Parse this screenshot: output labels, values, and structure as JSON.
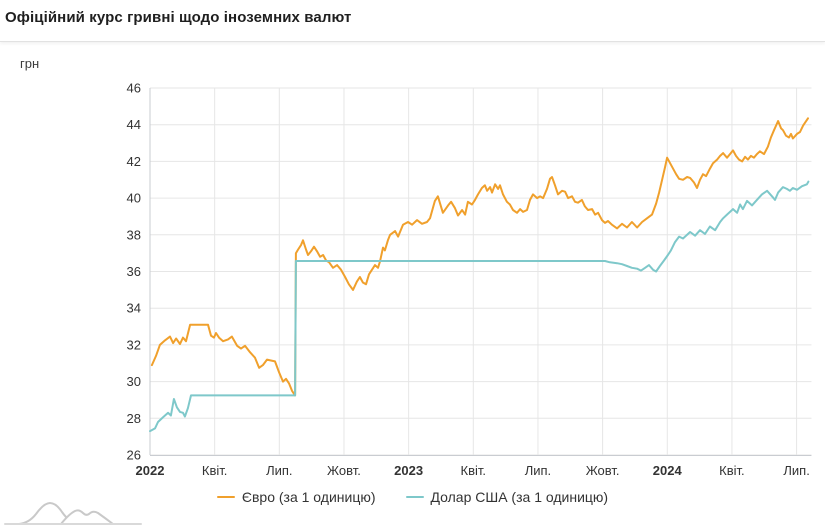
{
  "header": {
    "title": "Офіційний курс гривні щодо іноземних валют"
  },
  "colors": {
    "euro_line": "#f0a02c",
    "usd_line": "#7ec8ca",
    "grid": "#e6e6e6",
    "axis": "#c9ccd1",
    "tick_text": "#333333",
    "logo_gray": "#c9c9c9"
  },
  "chart_data": {
    "type": "line",
    "title": "Офіційний курс гривні щодо іноземних валют",
    "ylabel": "грн",
    "ylim": [
      26,
      46
    ],
    "y_ticks": [
      26,
      28,
      30,
      32,
      34,
      36,
      38,
      40,
      42,
      44,
      46
    ],
    "grid": true,
    "legend_position": "bottom",
    "x_unit": "months_since_2022_01",
    "x_range_months": [
      0,
      30.55
    ],
    "x_ticks": [
      {
        "m": 0,
        "label": "2022",
        "bold": true
      },
      {
        "m": 3,
        "label": "Квіт.",
        "bold": false
      },
      {
        "m": 6,
        "label": "Лип.",
        "bold": false
      },
      {
        "m": 9,
        "label": "Жовт.",
        "bold": false
      },
      {
        "m": 12,
        "label": "2023",
        "bold": true
      },
      {
        "m": 15,
        "label": "Квіт.",
        "bold": false
      },
      {
        "m": 18,
        "label": "Лип.",
        "bold": false
      },
      {
        "m": 21,
        "label": "Жовт.",
        "bold": false
      },
      {
        "m": 24,
        "label": "2024",
        "bold": true
      },
      {
        "m": 27,
        "label": "Квіт.",
        "bold": false
      },
      {
        "m": 30,
        "label": "Лип.",
        "bold": false
      }
    ],
    "series": [
      {
        "name": "Євро (за 1 одиницю)",
        "color": "#f0a02c",
        "points": [
          [
            0.09,
            30.9
          ],
          [
            0.28,
            31.4
          ],
          [
            0.46,
            32.0
          ],
          [
            0.7,
            32.25
          ],
          [
            0.93,
            32.45
          ],
          [
            1.07,
            32.1
          ],
          [
            1.21,
            32.35
          ],
          [
            1.39,
            32.05
          ],
          [
            1.53,
            32.4
          ],
          [
            1.67,
            32.2
          ],
          [
            1.86,
            33.1
          ],
          [
            2.69,
            33.1
          ],
          [
            2.83,
            32.5
          ],
          [
            2.97,
            32.4
          ],
          [
            3.06,
            32.65
          ],
          [
            3.2,
            32.4
          ],
          [
            3.39,
            32.2
          ],
          [
            3.62,
            32.3
          ],
          [
            3.8,
            32.45
          ],
          [
            4.04,
            31.95
          ],
          [
            4.22,
            31.8
          ],
          [
            4.41,
            31.95
          ],
          [
            4.64,
            31.6
          ],
          [
            4.87,
            31.3
          ],
          [
            5.06,
            30.75
          ],
          [
            5.24,
            30.9
          ],
          [
            5.43,
            31.2
          ],
          [
            5.61,
            31.15
          ],
          [
            5.8,
            31.1
          ],
          [
            5.99,
            30.5
          ],
          [
            6.17,
            30.0
          ],
          [
            6.31,
            30.15
          ],
          [
            6.45,
            29.9
          ],
          [
            6.59,
            29.5
          ],
          [
            6.73,
            29.25
          ],
          [
            6.77,
            37.0
          ],
          [
            6.87,
            37.2
          ],
          [
            7.01,
            37.45
          ],
          [
            7.1,
            37.7
          ],
          [
            7.24,
            37.2
          ],
          [
            7.33,
            36.9
          ],
          [
            7.47,
            37.1
          ],
          [
            7.61,
            37.35
          ],
          [
            7.75,
            37.1
          ],
          [
            7.89,
            36.8
          ],
          [
            8.03,
            36.9
          ],
          [
            8.17,
            36.6
          ],
          [
            8.31,
            36.5
          ],
          [
            8.49,
            36.2
          ],
          [
            8.68,
            36.35
          ],
          [
            8.86,
            36.1
          ],
          [
            9.05,
            35.7
          ],
          [
            9.23,
            35.3
          ],
          [
            9.42,
            35.0
          ],
          [
            9.6,
            35.45
          ],
          [
            9.74,
            35.7
          ],
          [
            9.88,
            35.4
          ],
          [
            10.02,
            35.3
          ],
          [
            10.16,
            35.85
          ],
          [
            10.3,
            36.1
          ],
          [
            10.44,
            36.35
          ],
          [
            10.58,
            36.2
          ],
          [
            10.67,
            36.55
          ],
          [
            10.81,
            37.3
          ],
          [
            10.9,
            37.15
          ],
          [
            11.04,
            37.7
          ],
          [
            11.14,
            38.0
          ],
          [
            11.37,
            38.2
          ],
          [
            11.51,
            37.9
          ],
          [
            11.74,
            38.55
          ],
          [
            11.97,
            38.7
          ],
          [
            12.16,
            38.55
          ],
          [
            12.39,
            38.8
          ],
          [
            12.62,
            38.6
          ],
          [
            12.85,
            38.7
          ],
          [
            12.99,
            38.9
          ],
          [
            13.22,
            39.85
          ],
          [
            13.36,
            40.1
          ],
          [
            13.59,
            39.2
          ],
          [
            13.83,
            39.6
          ],
          [
            13.97,
            39.8
          ],
          [
            14.15,
            39.45
          ],
          [
            14.29,
            39.05
          ],
          [
            14.48,
            39.35
          ],
          [
            14.62,
            39.1
          ],
          [
            14.75,
            39.8
          ],
          [
            14.94,
            39.65
          ],
          [
            15.08,
            39.9
          ],
          [
            15.22,
            40.2
          ],
          [
            15.4,
            40.55
          ],
          [
            15.54,
            40.7
          ],
          [
            15.64,
            40.4
          ],
          [
            15.78,
            40.6
          ],
          [
            15.87,
            40.3
          ],
          [
            16.01,
            40.75
          ],
          [
            16.15,
            40.5
          ],
          [
            16.24,
            40.7
          ],
          [
            16.38,
            40.2
          ],
          [
            16.56,
            39.8
          ],
          [
            16.7,
            39.65
          ],
          [
            16.84,
            39.35
          ],
          [
            17.03,
            39.2
          ],
          [
            17.17,
            39.4
          ],
          [
            17.31,
            39.25
          ],
          [
            17.49,
            39.35
          ],
          [
            17.63,
            39.9
          ],
          [
            17.77,
            40.2
          ],
          [
            17.96,
            40.0
          ],
          [
            18.1,
            40.1
          ],
          [
            18.24,
            40.0
          ],
          [
            18.42,
            40.5
          ],
          [
            18.56,
            41.05
          ],
          [
            18.65,
            41.15
          ],
          [
            18.79,
            40.7
          ],
          [
            18.93,
            40.2
          ],
          [
            19.12,
            40.4
          ],
          [
            19.26,
            40.35
          ],
          [
            19.4,
            40.0
          ],
          [
            19.58,
            40.1
          ],
          [
            19.72,
            39.8
          ],
          [
            19.86,
            39.75
          ],
          [
            20.04,
            39.9
          ],
          [
            20.18,
            39.55
          ],
          [
            20.32,
            39.35
          ],
          [
            20.51,
            39.4
          ],
          [
            20.65,
            39.1
          ],
          [
            20.79,
            39.2
          ],
          [
            20.97,
            38.8
          ],
          [
            21.11,
            38.65
          ],
          [
            21.25,
            38.75
          ],
          [
            21.43,
            38.55
          ],
          [
            21.67,
            38.35
          ],
          [
            21.9,
            38.6
          ],
          [
            22.13,
            38.4
          ],
          [
            22.36,
            38.7
          ],
          [
            22.6,
            38.4
          ],
          [
            22.83,
            38.7
          ],
          [
            23.06,
            38.9
          ],
          [
            23.29,
            39.1
          ],
          [
            23.48,
            39.7
          ],
          [
            23.62,
            40.3
          ],
          [
            23.76,
            41.0
          ],
          [
            23.9,
            41.7
          ],
          [
            23.99,
            42.2
          ],
          [
            24.13,
            41.9
          ],
          [
            24.27,
            41.6
          ],
          [
            24.41,
            41.3
          ],
          [
            24.55,
            41.05
          ],
          [
            24.73,
            41.0
          ],
          [
            24.92,
            41.15
          ],
          [
            25.06,
            41.1
          ],
          [
            25.24,
            40.85
          ],
          [
            25.38,
            40.55
          ],
          [
            25.52,
            41.0
          ],
          [
            25.66,
            41.3
          ],
          [
            25.8,
            41.2
          ],
          [
            25.98,
            41.6
          ],
          [
            26.12,
            41.9
          ],
          [
            26.31,
            42.1
          ],
          [
            26.45,
            42.3
          ],
          [
            26.59,
            42.45
          ],
          [
            26.77,
            42.2
          ],
          [
            26.91,
            42.4
          ],
          [
            27.05,
            42.6
          ],
          [
            27.19,
            42.3
          ],
          [
            27.33,
            42.1
          ],
          [
            27.47,
            42.0
          ],
          [
            27.61,
            42.25
          ],
          [
            27.74,
            42.1
          ],
          [
            27.88,
            42.3
          ],
          [
            28.02,
            42.2
          ],
          [
            28.16,
            42.4
          ],
          [
            28.3,
            42.55
          ],
          [
            28.49,
            42.4
          ],
          [
            28.67,
            42.8
          ],
          [
            28.81,
            43.3
          ],
          [
            28.95,
            43.7
          ],
          [
            29.14,
            44.2
          ],
          [
            29.28,
            43.8
          ],
          [
            29.37,
            43.7
          ],
          [
            29.51,
            43.4
          ],
          [
            29.65,
            43.3
          ],
          [
            29.74,
            43.5
          ],
          [
            29.83,
            43.25
          ],
          [
            30.02,
            43.5
          ],
          [
            30.16,
            43.6
          ],
          [
            30.3,
            43.95
          ],
          [
            30.53,
            44.35
          ]
        ]
      },
      {
        "name": "Долар США (за 1 одиницю)",
        "color": "#7ec8ca",
        "points": [
          [
            0.0,
            27.3
          ],
          [
            0.23,
            27.45
          ],
          [
            0.37,
            27.8
          ],
          [
            0.6,
            28.05
          ],
          [
            0.84,
            28.3
          ],
          [
            0.97,
            28.15
          ],
          [
            1.11,
            29.05
          ],
          [
            1.25,
            28.6
          ],
          [
            1.39,
            28.35
          ],
          [
            1.53,
            28.3
          ],
          [
            1.62,
            28.1
          ],
          [
            1.76,
            28.55
          ],
          [
            1.9,
            29.25
          ],
          [
            6.73,
            29.25
          ],
          [
            6.77,
            36.57
          ],
          [
            21.11,
            36.57
          ],
          [
            21.34,
            36.5
          ],
          [
            21.67,
            36.45
          ],
          [
            21.9,
            36.4
          ],
          [
            22.13,
            36.3
          ],
          [
            22.36,
            36.2
          ],
          [
            22.6,
            36.15
          ],
          [
            22.78,
            36.05
          ],
          [
            22.97,
            36.2
          ],
          [
            23.15,
            36.35
          ],
          [
            23.34,
            36.1
          ],
          [
            23.48,
            36.0
          ],
          [
            23.66,
            36.3
          ],
          [
            23.85,
            36.6
          ],
          [
            24.03,
            36.9
          ],
          [
            24.17,
            37.15
          ],
          [
            24.36,
            37.6
          ],
          [
            24.55,
            37.9
          ],
          [
            24.73,
            37.8
          ],
          [
            24.92,
            38.0
          ],
          [
            25.06,
            38.15
          ],
          [
            25.29,
            37.95
          ],
          [
            25.52,
            38.25
          ],
          [
            25.75,
            38.05
          ],
          [
            25.98,
            38.45
          ],
          [
            26.22,
            38.25
          ],
          [
            26.45,
            38.7
          ],
          [
            26.59,
            38.9
          ],
          [
            26.77,
            39.1
          ],
          [
            26.91,
            39.25
          ],
          [
            27.05,
            39.4
          ],
          [
            27.24,
            39.2
          ],
          [
            27.38,
            39.65
          ],
          [
            27.51,
            39.4
          ],
          [
            27.7,
            39.85
          ],
          [
            27.93,
            39.6
          ],
          [
            28.16,
            39.9
          ],
          [
            28.39,
            40.2
          ],
          [
            28.63,
            40.4
          ],
          [
            28.86,
            40.1
          ],
          [
            29.0,
            39.9
          ],
          [
            29.14,
            40.3
          ],
          [
            29.37,
            40.6
          ],
          [
            29.55,
            40.5
          ],
          [
            29.69,
            40.4
          ],
          [
            29.83,
            40.55
          ],
          [
            30.02,
            40.45
          ],
          [
            30.25,
            40.65
          ],
          [
            30.48,
            40.75
          ],
          [
            30.55,
            40.9
          ]
        ]
      }
    ]
  }
}
